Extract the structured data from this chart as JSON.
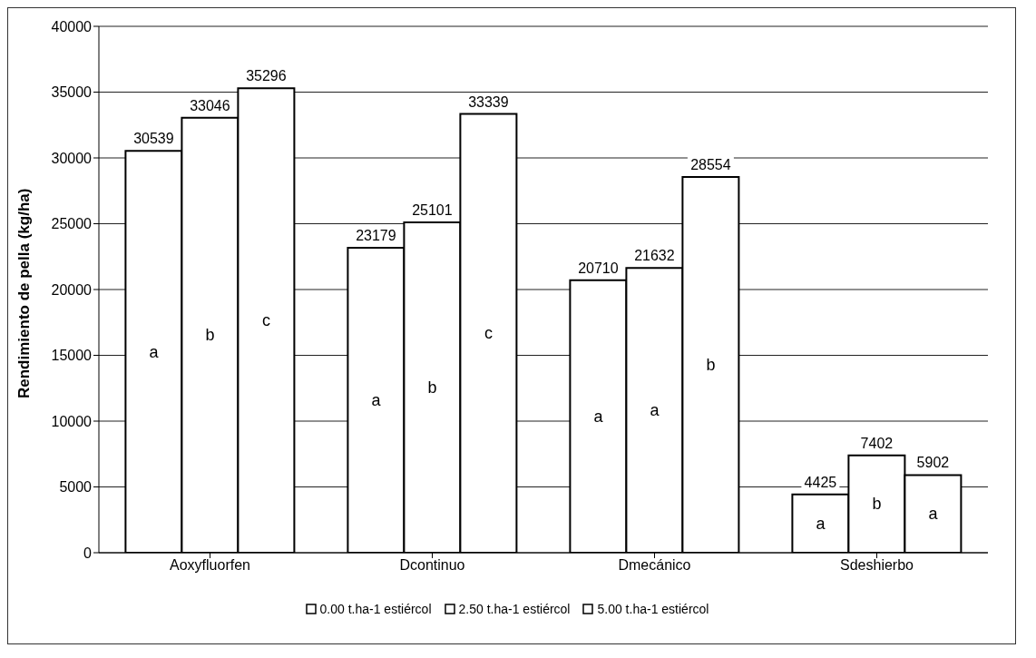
{
  "chart_data": {
    "type": "bar",
    "ylabel": "Rendimiento de pella (kg/ha)",
    "categories": [
      "Aoxyfluorfen",
      "Dcontinuo",
      "Dmecánico",
      "Sdeshierbo"
    ],
    "series": [
      {
        "name": "0.00 t.ha-1 estiércol",
        "color": "#ffffff",
        "values": [
          30539,
          23179,
          20710,
          4425
        ]
      },
      {
        "name": "2.50 t.ha-1  estiércol",
        "color": "#ffffff",
        "values": [
          33046,
          25101,
          21632,
          7402
        ]
      },
      {
        "name": "5.00 t.ha-1  estiércol",
        "color": "#ffffff",
        "values": [
          35296,
          33339,
          28554,
          5902
        ]
      }
    ],
    "ylim": [
      0,
      40000
    ],
    "yticks": [
      0,
      5000,
      10000,
      15000,
      20000,
      25000,
      30000,
      35000,
      40000
    ],
    "grid": "y",
    "legend": "bottom",
    "data_labels": true,
    "annotations": [
      "a",
      "b",
      "c",
      "a",
      "b",
      "c",
      "a",
      "a",
      "b",
      "a",
      "b",
      "a"
    ]
  }
}
